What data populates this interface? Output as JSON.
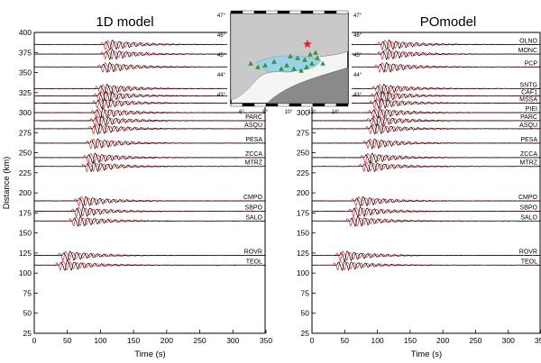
{
  "chart_data": [
    {
      "type": "line",
      "title": "1D model",
      "xlabel": "Time (s)",
      "ylabel": "Distance (km)",
      "xlim": [
        0,
        350
      ],
      "ylim": [
        25,
        400
      ],
      "xticks": [
        0,
        50,
        100,
        150,
        200,
        250,
        300,
        350
      ],
      "yticks": [
        25,
        50,
        75,
        100,
        125,
        150,
        175,
        200,
        225,
        250,
        275,
        300,
        325,
        350,
        375,
        400
      ],
      "series_colors": {
        "observed": "#000000",
        "synthetic": "#e0202a"
      },
      "traces": [
        {
          "station": "OLNO",
          "distance": 385,
          "arrival": 100
        },
        {
          "station": "MONC",
          "distance": 373,
          "arrival": 100
        },
        {
          "station": "PCP",
          "distance": 357,
          "arrival": 96
        },
        {
          "station": "SNTG",
          "distance": 330,
          "arrival": 92
        },
        {
          "station": "CAF1",
          "distance": 321,
          "arrival": 90
        },
        {
          "station": "MSSA",
          "distance": 312,
          "arrival": 88
        },
        {
          "station": "PIEI",
          "distance": 300,
          "arrival": 86
        },
        {
          "station": "PARC",
          "distance": 290,
          "arrival": 84
        },
        {
          "station": "ASQU",
          "distance": 280,
          "arrival": 82
        },
        {
          "station": "PESA",
          "distance": 262,
          "arrival": 78
        },
        {
          "station": "ZCCA",
          "distance": 244,
          "arrival": 74
        },
        {
          "station": "MTRZ",
          "distance": 233,
          "arrival": 72
        },
        {
          "station": "CMPO",
          "distance": 190,
          "arrival": 60
        },
        {
          "station": "SBPO",
          "distance": 177,
          "arrival": 56
        },
        {
          "station": "SALO",
          "distance": 165,
          "arrival": 52
        },
        {
          "station": "ROVR",
          "distance": 122,
          "arrival": 36
        },
        {
          "station": "TEOL",
          "distance": 110,
          "arrival": 32
        }
      ],
      "labeled_stations": [
        "OLNO",
        "MONC",
        "PCP",
        "SNTG",
        "CAF1",
        "MSSA",
        "PIEI",
        "PARC",
        "ASQU",
        "PESA",
        "ZCCA",
        "MTRZ",
        "CMPO",
        "SBPO",
        "SALO",
        "ROVR",
        "TEOL"
      ],
      "hidden_labels": [
        "OLNO",
        "MONC",
        "PCP",
        "SNTG",
        "CAF1",
        "MSSA",
        "PIEI"
      ]
    },
    {
      "type": "line",
      "title": "POmodel",
      "xlabel": "Time (s)",
      "ylabel": "",
      "xlim": [
        0,
        350
      ],
      "ylim": [
        25,
        400
      ],
      "xticks": [
        0,
        50,
        100,
        150,
        200,
        250,
        300,
        350
      ],
      "yticks": [
        25,
        50,
        75,
        100,
        125,
        150,
        175,
        200,
        225,
        250,
        275,
        300,
        325,
        350,
        375,
        400
      ],
      "series_colors": {
        "observed": "#000000",
        "synthetic": "#e0202a"
      },
      "traces": [
        {
          "station": "OLNO",
          "distance": 385,
          "arrival": 100
        },
        {
          "station": "MONC",
          "distance": 373,
          "arrival": 100
        },
        {
          "station": "PCP",
          "distance": 357,
          "arrival": 96
        },
        {
          "station": "SNTG",
          "distance": 330,
          "arrival": 92
        },
        {
          "station": "CAF1",
          "distance": 321,
          "arrival": 90
        },
        {
          "station": "MSSA",
          "distance": 312,
          "arrival": 88
        },
        {
          "station": "PIEI",
          "distance": 300,
          "arrival": 86
        },
        {
          "station": "PARC",
          "distance": 290,
          "arrival": 84
        },
        {
          "station": "ASQU",
          "distance": 280,
          "arrival": 82
        },
        {
          "station": "PESA",
          "distance": 262,
          "arrival": 78
        },
        {
          "station": "ZCCA",
          "distance": 244,
          "arrival": 74
        },
        {
          "station": "MTRZ",
          "distance": 233,
          "arrival": 72
        },
        {
          "station": "CMPO",
          "distance": 190,
          "arrival": 60
        },
        {
          "station": "SBPO",
          "distance": 177,
          "arrival": 56
        },
        {
          "station": "SALO",
          "distance": 165,
          "arrival": 52
        },
        {
          "station": "ROVR",
          "distance": 122,
          "arrival": 36
        },
        {
          "station": "TEOL",
          "distance": 110,
          "arrival": 32
        }
      ],
      "labeled_stations": [
        "OLNO",
        "MONC",
        "PCP",
        "SNTG",
        "CAF1",
        "MSSA",
        "PIEI",
        "PARC",
        "ASQU",
        "PESA",
        "ZCCA",
        "MTRZ",
        "CMPO",
        "SBPO",
        "SALO",
        "ROVR",
        "TEOL"
      ],
      "hidden_labels": []
    }
  ],
  "inset_map": {
    "lat_labels_left": [
      "47°",
      "46°",
      "45°",
      "44°",
      "43°"
    ],
    "lat_labels_right": [
      "47°",
      "46°",
      "45°",
      "44°",
      "43°"
    ],
    "lon_labels": [
      "6°",
      "8°",
      "10°",
      "12°",
      "14°"
    ],
    "station_names": [
      "OLNO",
      "MONC",
      "PCP",
      "SNTG",
      "CAF1",
      "MSSA",
      "PIEI",
      "PARC",
      "ASQU",
      "PESA",
      "ZCCA",
      "MTRZ",
      "CMPO",
      "SBPO",
      "SALO",
      "ROVR",
      "TEOL"
    ],
    "colors": {
      "land": "#c9c9c9",
      "sea": "#f4f4f4",
      "basin": "#9ad2e6",
      "station": "#2e9c3a",
      "epicenter": "#e0202a"
    }
  }
}
